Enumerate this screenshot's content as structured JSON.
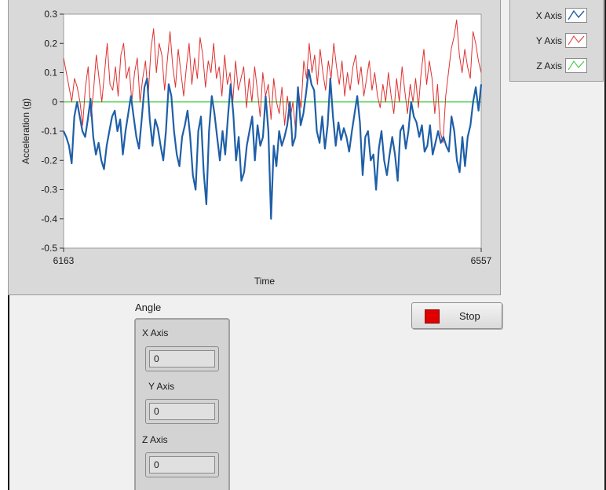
{
  "chart_data": {
    "type": "line",
    "xlabel": "Time",
    "ylabel": "Acceleration (g)",
    "xlim": [
      6163,
      6557
    ],
    "ylim": [
      -0.5,
      0.3
    ],
    "x_tick_labels": [
      "6163",
      "6557"
    ],
    "y_tick_labels": [
      "0.3",
      "0.2",
      "0.1",
      "0",
      "-0.1",
      "-0.2",
      "-0.3",
      "-0.4",
      "-0.5"
    ],
    "grid": false,
    "legend_position": "top-right",
    "series": [
      {
        "name": "X Axis",
        "color": "#1f5fa8",
        "values": [
          -0.1,
          -0.12,
          -0.15,
          -0.21,
          -0.05,
          0.0,
          -0.05,
          -0.1,
          -0.12,
          -0.06,
          0.01,
          -0.12,
          -0.18,
          -0.14,
          -0.2,
          -0.23,
          -0.15,
          -0.1,
          -0.05,
          -0.03,
          -0.1,
          -0.06,
          -0.18,
          -0.1,
          -0.04,
          0.02,
          -0.05,
          -0.12,
          -0.16,
          -0.06,
          0.05,
          0.08,
          -0.06,
          -0.15,
          -0.06,
          -0.09,
          -0.15,
          -0.2,
          -0.1,
          0.06,
          0.02,
          -0.1,
          -0.18,
          -0.22,
          -0.12,
          -0.08,
          -0.03,
          -0.12,
          -0.25,
          -0.3,
          -0.1,
          -0.05,
          -0.24,
          -0.35,
          -0.1,
          0.02,
          -0.04,
          -0.12,
          -0.2,
          -0.1,
          -0.18,
          -0.05,
          0.06,
          -0.04,
          -0.2,
          -0.12,
          -0.27,
          -0.24,
          -0.15,
          -0.1,
          -0.05,
          -0.2,
          -0.08,
          -0.15,
          -0.12,
          0.02,
          -0.1,
          -0.4,
          -0.15,
          -0.22,
          -0.1,
          -0.15,
          -0.12,
          -0.08,
          0.0,
          -0.15,
          -0.12,
          0.05,
          -0.08,
          -0.04,
          0.03,
          0.11,
          0.06,
          0.04,
          -0.1,
          -0.14,
          -0.05,
          -0.16,
          -0.08,
          0.08,
          -0.05,
          -0.15,
          -0.07,
          -0.13,
          -0.09,
          -0.12,
          -0.17,
          -0.1,
          -0.04,
          0.02,
          -0.07,
          -0.25,
          -0.12,
          -0.1,
          -0.2,
          -0.18,
          -0.3,
          -0.16,
          -0.1,
          -0.2,
          -0.25,
          -0.18,
          -0.12,
          -0.18,
          -0.27,
          -0.1,
          -0.08,
          -0.16,
          -0.1,
          0.0,
          -0.05,
          -0.07,
          -0.12,
          -0.08,
          -0.17,
          -0.15,
          -0.08,
          -0.18,
          -0.14,
          -0.1,
          -0.14,
          -0.12,
          -0.15,
          -0.17,
          -0.05,
          -0.1,
          -0.2,
          -0.24,
          -0.12,
          -0.22,
          -0.12,
          -0.08,
          0.0,
          0.05,
          -0.03,
          0.06
        ]
      },
      {
        "name": "Y Axis",
        "color": "#e03030",
        "values": [
          0.15,
          0.1,
          0.05,
          0.0,
          0.08,
          0.05,
          0.0,
          -0.08,
          0.05,
          0.12,
          -0.05,
          0.04,
          0.16,
          0.08,
          0.0,
          0.1,
          0.2,
          0.06,
          0.04,
          0.12,
          0.02,
          0.16,
          0.2,
          0.08,
          0.12,
          0.0,
          0.1,
          0.15,
          0.0,
          0.08,
          0.14,
          0.02,
          0.18,
          0.25,
          0.1,
          0.2,
          0.16,
          0.04,
          0.14,
          0.24,
          0.12,
          0.05,
          0.18,
          0.1,
          0.02,
          0.12,
          0.2,
          0.06,
          0.15,
          0.08,
          0.22,
          0.16,
          0.05,
          0.14,
          0.1,
          0.2,
          0.08,
          0.12,
          0.02,
          0.16,
          0.06,
          0.1,
          0.0,
          0.14,
          0.04,
          0.08,
          0.12,
          -0.02,
          0.08,
          0.0,
          0.12,
          0.04,
          -0.05,
          0.1,
          0.02,
          0.06,
          -0.06,
          0.08,
          0.0,
          -0.04,
          0.05,
          -0.08,
          0.02,
          -0.06,
          0.0,
          -0.1,
          0.04,
          -0.02,
          0.14,
          0.08,
          0.2,
          0.1,
          0.16,
          0.06,
          0.18,
          0.1,
          0.04,
          0.14,
          0.08,
          0.2,
          0.12,
          0.06,
          0.14,
          0.02,
          0.1,
          0.04,
          0.12,
          0.16,
          0.06,
          0.12,
          0.02,
          0.08,
          0.14,
          0.04,
          0.1,
          0.02,
          -0.02,
          0.06,
          0.0,
          0.1,
          0.02,
          -0.04,
          0.08,
          0.0,
          0.12,
          0.04,
          -0.04,
          0.06,
          0.0,
          0.08,
          -0.02,
          0.1,
          0.18,
          0.06,
          0.14,
          0.08,
          -0.04,
          0.06,
          -0.1,
          -0.14,
          0.02,
          0.1,
          0.18,
          0.22,
          0.28,
          0.16,
          0.1,
          0.18,
          0.12,
          0.08,
          0.24,
          0.2,
          0.14,
          0.1
        ]
      },
      {
        "name": "Z Axis",
        "color": "#2ec52e",
        "values": [
          0,
          0
        ]
      }
    ]
  },
  "angle": {
    "title": "Angle",
    "x_label": "X Axis",
    "x_value": "0",
    "y_label": "Y Axis",
    "y_value": "0",
    "z_label": "Z Axis",
    "z_value": "0"
  },
  "stop_button": {
    "label": "Stop",
    "icon": "red-square-icon",
    "icon_color": "#e00000"
  }
}
